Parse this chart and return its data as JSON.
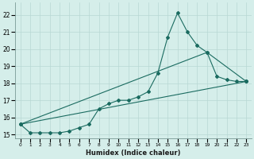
{
  "xlabel": "Humidex (Indice chaleur)",
  "ylabel": "",
  "background_color": "#d5eeea",
  "grid_color": "#b8d8d4",
  "line_color": "#1a6b60",
  "xlim": [
    -0.5,
    23.5
  ],
  "ylim": [
    14.8,
    22.7
  ],
  "xticks": [
    0,
    1,
    2,
    3,
    4,
    5,
    6,
    7,
    8,
    9,
    10,
    11,
    12,
    13,
    14,
    15,
    16,
    17,
    18,
    19,
    20,
    21,
    22,
    23
  ],
  "yticks": [
    15,
    16,
    17,
    18,
    19,
    20,
    21,
    22
  ],
  "series1_x": [
    0,
    1,
    2,
    3,
    4,
    5,
    6,
    7,
    8,
    9,
    10,
    11,
    12,
    13,
    14,
    15,
    16,
    17,
    18,
    19,
    20,
    21,
    22,
    23
  ],
  "series1_y": [
    15.6,
    15.1,
    15.1,
    15.1,
    15.1,
    15.2,
    15.4,
    15.6,
    16.5,
    16.8,
    17.0,
    17.0,
    17.2,
    17.5,
    18.6,
    20.7,
    22.1,
    21.0,
    20.2,
    19.8,
    18.4,
    18.2,
    18.1,
    18.1
  ],
  "series2_x": [
    0,
    23
  ],
  "series2_y": [
    15.6,
    18.1
  ],
  "series3_x": [
    0,
    19,
    23
  ],
  "series3_y": [
    15.6,
    19.8,
    18.1
  ]
}
